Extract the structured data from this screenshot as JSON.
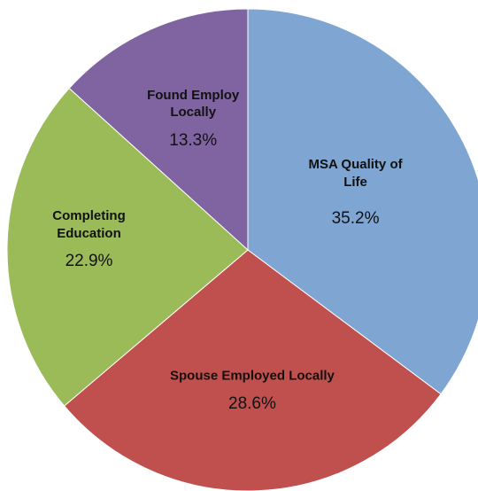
{
  "chart_data": {
    "type": "pie",
    "categories": [
      "MSA Quality of Life",
      "Spouse Employed Locally",
      "Completing Education",
      "Found Employ Locally"
    ],
    "values": [
      35.2,
      28.6,
      22.9,
      13.3
    ],
    "value_labels": [
      "35.2%",
      "28.6%",
      "22.9%",
      "13.3%"
    ],
    "colors": [
      "#7fa5d2",
      "#c0504d",
      "#9bbb59",
      "#8064a2"
    ]
  }
}
